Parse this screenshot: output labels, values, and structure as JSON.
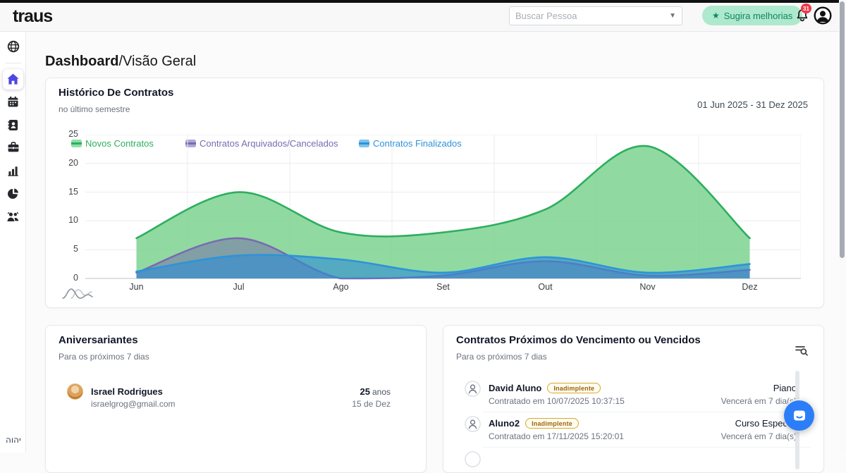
{
  "colors": {
    "accent_button_bg": "#aee8cd",
    "accent_button_text": "#0d8466",
    "active_nav_icon": "#4f46e5",
    "notification_badge": "#f0384a",
    "badge_text": "#a16207",
    "badge_border": "#d9a72a",
    "chat_fab": "#2b7ef8"
  },
  "topbar": {
    "logo": "traus",
    "search_placeholder": "Buscar Pessoa",
    "suggest_button_label": "Sugira melhorias",
    "notification_count": "31"
  },
  "sidebar": {
    "items": [
      "globe",
      "home",
      "calendar",
      "contacts",
      "briefcase",
      "bar-chart",
      "pie-chart",
      "community"
    ],
    "active_item": "home",
    "footer_text": "יהוה"
  },
  "breadcrumb": {
    "section": "Dashboard",
    "page": "/Visão Geral"
  },
  "history_card": {
    "title": "Histórico De Contratos",
    "subtitle": "no último semestre",
    "date_range": "01 Jun 2025 - 31 Dez 2025"
  },
  "chart_data": {
    "type": "area",
    "title": "Histórico De Contratos",
    "categories": [
      "Jun",
      "Jul",
      "Ago",
      "Set",
      "Out",
      "Nov",
      "Dez"
    ],
    "series": [
      {
        "name": "Novos Contratos",
        "values": [
          7,
          15,
          8,
          8,
          12,
          23,
          7
        ],
        "line_color": "#2eae5f",
        "fill_color": "rgba(125,211,144,0.85)",
        "swatch_color": "#8fdfa8"
      },
      {
        "name": "Contratos Arquivados/Cancelados",
        "values": [
          1,
          7,
          0,
          0.5,
          3,
          0.5,
          1.5
        ],
        "line_color": "#7a6ab2",
        "fill_color": "rgba(116,99,170,0.5)",
        "swatch_color": "#b3a6d6"
      },
      {
        "name": "Contratos Finalizados",
        "values": [
          1.2,
          4,
          3.3,
          1,
          3.7,
          1,
          2.5
        ],
        "line_color": "#2e93d9",
        "fill_color": "rgba(47,141,212,0.62)",
        "swatch_color": "#7fc3ee"
      }
    ],
    "ylim": [
      0,
      25
    ],
    "yticks": [
      0,
      5,
      10,
      15,
      20,
      25
    ],
    "grid": true,
    "legend_position": "top-left-inside"
  },
  "birthdays_card": {
    "title": "Aniversariantes",
    "subtitle": "Para os próximos 7 dias",
    "items": [
      {
        "name": "Israel Rodrigues",
        "email": "israelgrog@gmail.com",
        "age": "25",
        "age_unit": "anos",
        "date": "15 de Dez"
      }
    ]
  },
  "expiring_card": {
    "title": "Contratos Próximos do Vencimento ou Vencidos",
    "subtitle": "Para os próximos 7 dias",
    "items": [
      {
        "name": "David Aluno",
        "badge": "Inadimplente",
        "contracted_at": "Contratado em 10/07/2025 10:37:15",
        "course": "Piano",
        "due": "Vencerá em 7 dia(s)"
      },
      {
        "name": "Aluno2",
        "badge": "Inadimplente",
        "contracted_at": "Contratado em 17/11/2025 15:20:01",
        "course": "Curso Especial",
        "due": "Vencerá em 7 dia(s)"
      }
    ]
  }
}
